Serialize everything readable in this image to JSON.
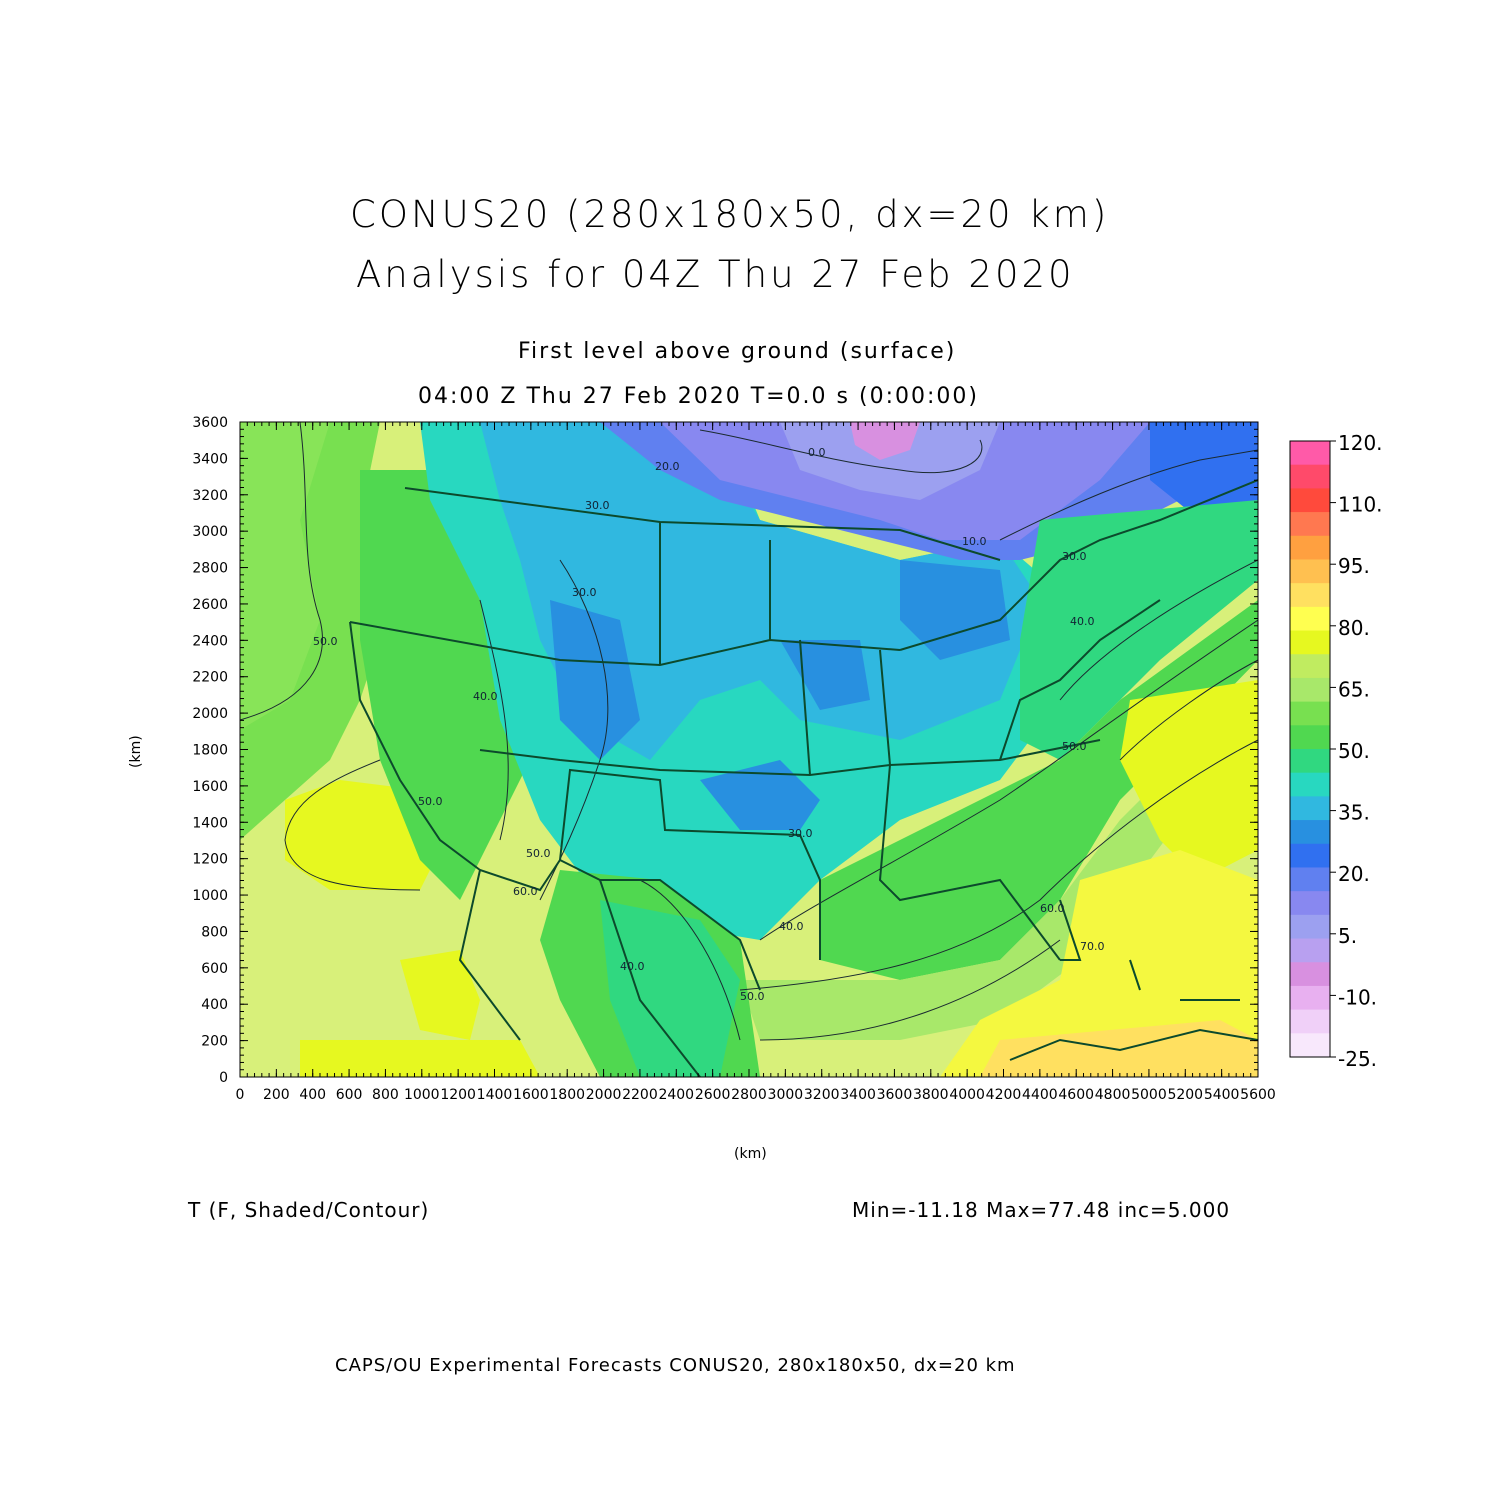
{
  "title": {
    "line1": "CONUS20 (280x180x50, dx=20 km)",
    "line2": "Analysis for 04Z Thu 27 Feb 2020"
  },
  "subtitle": {
    "level": "First level above ground (surface)",
    "time": "04:00 Z Thu 27 Feb 2020    T=0.0 s (0:00:00)"
  },
  "axes": {
    "x_label": "(km)",
    "y_label": "(km)",
    "x_ticks": [
      "0",
      "200",
      "400",
      "600",
      "800",
      "1000",
      "1200",
      "1400",
      "1600",
      "1800",
      "2000",
      "2200",
      "2400",
      "2600",
      "2800",
      "3000",
      "3200",
      "3400",
      "3600",
      "3800",
      "4000",
      "4200",
      "4400",
      "4600",
      "4800",
      "5000",
      "5200",
      "5400",
      "5600"
    ],
    "y_ticks": [
      "0",
      "200",
      "400",
      "600",
      "800",
      "1000",
      "1200",
      "1400",
      "1600",
      "1800",
      "2000",
      "2200",
      "2400",
      "2600",
      "2800",
      "3000",
      "3200",
      "3400",
      "3600"
    ],
    "x_range_km": [
      0,
      5600
    ],
    "y_range_km": [
      0,
      3600
    ]
  },
  "colorbar": {
    "labels": [
      "120.",
      "110.",
      "95.",
      "80.",
      "65.",
      "50.",
      "35.",
      "20.",
      "5.",
      "-10.",
      "-25."
    ],
    "colors": [
      "#ff5aa8",
      "#ff4a6a",
      "#ff4a3c",
      "#ff7850",
      "#ffa040",
      "#ffc050",
      "#ffe060",
      "#ffff50",
      "#e6f820",
      "#c0ec60",
      "#a8e86a",
      "#78e050",
      "#50d850",
      "#30d880",
      "#28d8c0",
      "#30b8e0",
      "#2890e0",
      "#3070f0",
      "#6080f0",
      "#8888f0",
      "#9ca0f0",
      "#b8a0f0",
      "#d890e0",
      "#e8b0f0",
      "#f0d0f8",
      "#f8e8fc"
    ]
  },
  "contour_labels": [
    "0.0",
    "10.0",
    "20.0",
    "30.0",
    "30.0",
    "30.0",
    "30.0",
    "40.0",
    "40.0",
    "40.0",
    "40.0",
    "50.0",
    "50.0",
    "50.0",
    "50.0",
    "50.0",
    "60.0",
    "60.0",
    "70.0"
  ],
  "field": {
    "variable": "T (F, Shaded/Contour)",
    "stats": "Min=-11.18 Max=77.48 inc=5.000"
  },
  "footer": "CAPS/OU Experimental Forecasts  CONUS20, 280x180x50, dx=20 km"
}
